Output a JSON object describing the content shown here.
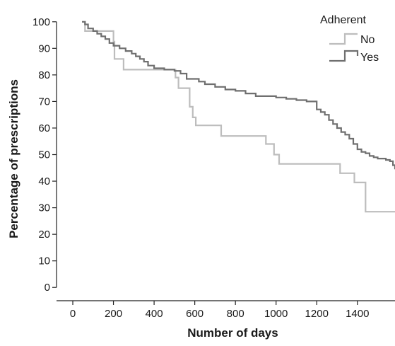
{
  "chart_data": {
    "type": "line",
    "step": true,
    "xlabel": "Number of days",
    "ylabel": "Percentage of prescriptions",
    "xlim": [
      -80,
      1585
    ],
    "ylim": [
      -5,
      105
    ],
    "xticks": [
      0,
      200,
      400,
      600,
      800,
      1000,
      1200,
      1400
    ],
    "yticks": [
      0,
      10,
      20,
      30,
      40,
      50,
      60,
      70,
      80,
      90,
      100
    ],
    "grid": false,
    "legend": {
      "title": "Adherent",
      "placement": "top-right"
    },
    "series": [
      {
        "name": "No",
        "color": "#bdbdbd",
        "x": [
          45,
          60,
          200,
          205,
          250,
          505,
          520,
          575,
          590,
          605,
          620,
          730,
          950,
          990,
          1015,
          1315,
          1385,
          1440,
          1585
        ],
        "y": [
          100,
          96.5,
          92.5,
          86,
          82,
          79,
          75,
          68,
          64,
          61,
          61,
          57,
          54,
          50,
          46.5,
          43,
          39.5,
          28.5,
          28.5
        ]
      },
      {
        "name": "Yes",
        "color": "#6f6f6f",
        "x": [
          45,
          60,
          75,
          100,
          120,
          140,
          160,
          180,
          200,
          230,
          260,
          290,
          310,
          330,
          350,
          370,
          400,
          450,
          500,
          530,
          560,
          620,
          650,
          700,
          750,
          800,
          850,
          900,
          1000,
          1050,
          1100,
          1150,
          1200,
          1220,
          1240,
          1260,
          1280,
          1300,
          1320,
          1340,
          1360,
          1380,
          1400,
          1420,
          1440,
          1460,
          1480,
          1500,
          1520,
          1540,
          1560,
          1575,
          1585
        ],
        "y": [
          100,
          99,
          97.5,
          96.5,
          95.5,
          94.5,
          93.5,
          92,
          91,
          90,
          89,
          88,
          87,
          86,
          85,
          83.5,
          82.5,
          82,
          81.5,
          80.5,
          78.5,
          77.5,
          76.5,
          75.5,
          74.5,
          74,
          73,
          72,
          71.5,
          71,
          70.5,
          70,
          67,
          66,
          65,
          63,
          61.5,
          60,
          58.5,
          57.5,
          56,
          54,
          52,
          51,
          50.5,
          49.5,
          49,
          48.5,
          48.5,
          48,
          47.5,
          46,
          44.5
        ]
      }
    ]
  }
}
